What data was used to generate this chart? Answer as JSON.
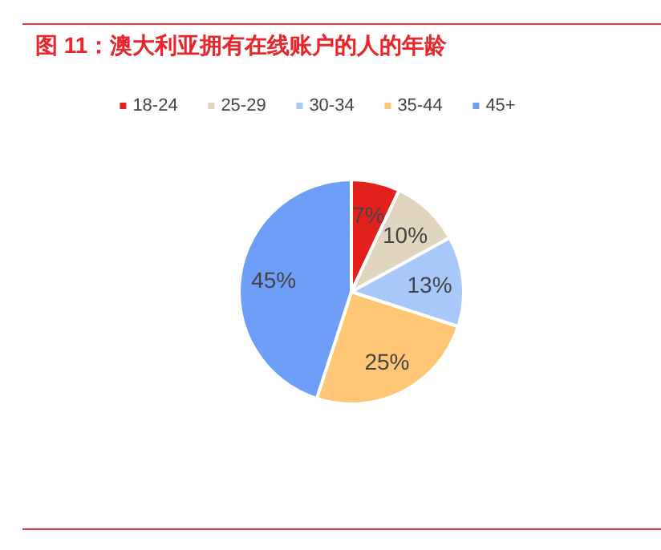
{
  "chart_data": {
    "type": "pie",
    "title": "图 11：澳大利亚拥有在线账户的人的年龄",
    "categories": [
      "18-24",
      "25-29",
      "30-34",
      "35-44",
      "45+"
    ],
    "values": [
      7,
      10,
      13,
      25,
      45
    ],
    "colors": [
      "#e2211c",
      "#e0d6c0",
      "#a8c8fa",
      "#fec675",
      "#6e9ef8"
    ],
    "value_labels": [
      "7%",
      "10%",
      "13%",
      "25%",
      "45%"
    ],
    "legend": "top"
  }
}
